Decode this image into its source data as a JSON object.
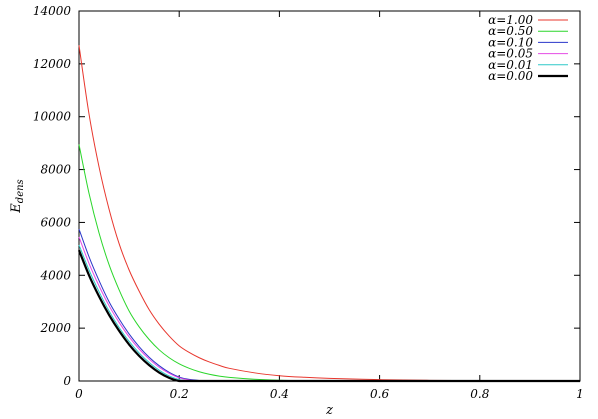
{
  "chart_data": {
    "type": "line",
    "xlabel": "z",
    "ylabel_main": "E",
    "ylabel_sub": "dens",
    "xlim": [
      0,
      1
    ],
    "ylim": [
      0,
      14000
    ],
    "grid": false,
    "legend_position": "top-right",
    "x_ticks": [
      "0",
      "0.2",
      "0.4",
      "0.6",
      "0.8",
      "1"
    ],
    "y_ticks": [
      "0",
      "2000",
      "4000",
      "6000",
      "8000",
      "10000",
      "12000",
      "14000"
    ],
    "x": [
      0,
      0.02,
      0.04,
      0.06,
      0.08,
      0.1,
      0.12,
      0.14,
      0.16,
      0.18,
      0.2,
      0.22,
      0.24,
      0.26,
      0.28,
      0.3,
      0.35,
      0.4,
      0.45,
      0.5,
      0.6,
      0.7,
      0.8,
      0.9,
      1.0
    ],
    "series": [
      {
        "name": "α=1.00",
        "color": "#e8372e",
        "width": 1,
        "values": [
          12700,
          10100,
          8100,
          6500,
          5200,
          4200,
          3400,
          2700,
          2150,
          1700,
          1330,
          1080,
          880,
          720,
          590,
          480,
          310,
          200,
          140,
          100,
          50,
          25,
          12,
          5,
          0
        ]
      },
      {
        "name": "α=0.50",
        "color": "#2bd62b",
        "width": 1,
        "values": [
          8950,
          7100,
          5600,
          4400,
          3450,
          2650,
          2050,
          1570,
          1180,
          880,
          650,
          480,
          350,
          255,
          185,
          135,
          65,
          30,
          15,
          8,
          3,
          0,
          0,
          0,
          0
        ]
      },
      {
        "name": "α=0.10",
        "color": "#2a36c9",
        "width": 1,
        "values": [
          5750,
          4700,
          3800,
          3000,
          2350,
          1780,
          1300,
          900,
          580,
          330,
          150,
          60,
          20,
          5,
          0,
          0,
          0,
          0,
          0,
          0,
          0,
          0,
          0,
          0,
          0
        ]
      },
      {
        "name": "α=0.05",
        "color": "#e44be4",
        "width": 1,
        "values": [
          5450,
          4450,
          3600,
          2850,
          2220,
          1670,
          1210,
          830,
          520,
          290,
          120,
          40,
          10,
          0,
          0,
          0,
          0,
          0,
          0,
          0,
          0,
          0,
          0,
          0,
          0
        ]
      },
      {
        "name": "α=0.01",
        "color": "#2ec8c8",
        "width": 1,
        "values": [
          5150,
          4200,
          3380,
          2650,
          2030,
          1500,
          1060,
          700,
          410,
          190,
          55,
          10,
          0,
          0,
          0,
          0,
          0,
          0,
          0,
          0,
          0,
          0,
          0,
          0,
          0
        ]
      },
      {
        "name": "α=0.00",
        "color": "#000000",
        "width": 2.2,
        "values": [
          4950,
          4000,
          3200,
          2500,
          1900,
          1380,
          950,
          600,
          320,
          120,
          0,
          0,
          0,
          0,
          0,
          0,
          0,
          0,
          0,
          0,
          0,
          0,
          0,
          0,
          0
        ]
      }
    ]
  }
}
